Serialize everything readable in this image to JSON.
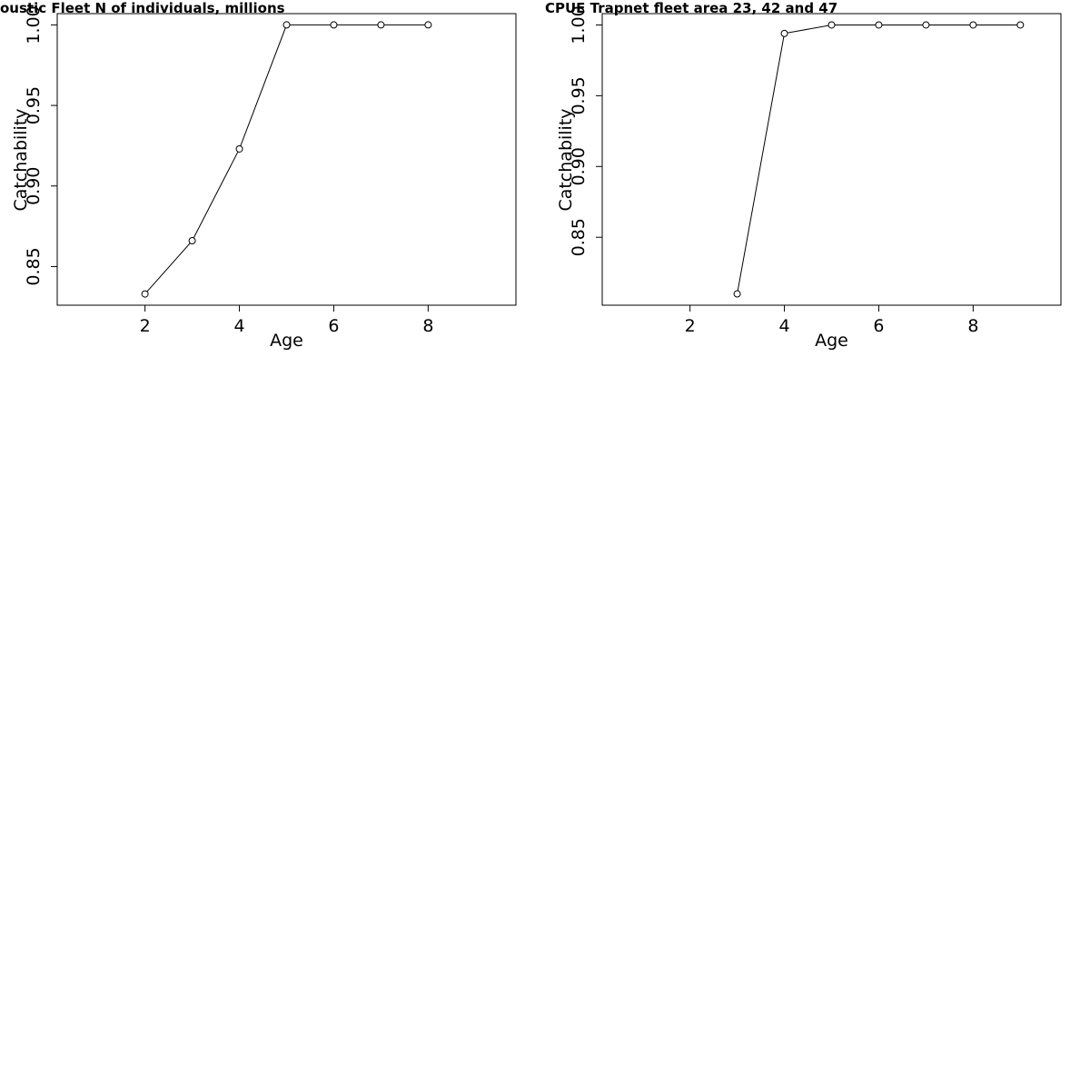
{
  "chart_data": [
    {
      "type": "line",
      "title": "oustic Fleet   N of individuals, millions",
      "x_label": "Age",
      "y_label": "Catchability",
      "x": [
        2,
        3,
        4,
        5,
        6,
        7,
        8
      ],
      "series": [
        {
          "color": "#000000",
          "values": [
            0.833,
            0.866,
            0.923,
            1,
            1,
            1,
            1
          ]
        }
      ],
      "xlim": [
        0.14,
        9.86
      ],
      "xticks": [
        2,
        4,
        6,
        8
      ],
      "ylim": [
        0.826,
        1.007
      ],
      "yticks": [
        0.85,
        {
          "value": 0.9,
          "label": "0.90"
        },
        0.95,
        {
          "value": 1,
          "label": "1.00"
        }
      ]
    },
    {
      "type": "line",
      "title": "CPUE Trapnet fleet area 23, 42 and 47",
      "x_label": "Age",
      "y_label": "Catchability",
      "x": [
        3,
        4,
        5,
        6,
        7,
        8,
        9
      ],
      "series": [
        {
          "color": "#000000",
          "values": [
            0.81,
            0.994,
            1,
            1,
            1,
            1,
            1
          ]
        }
      ],
      "xlim": [
        0.14,
        9.86
      ],
      "xticks": [
        2,
        4,
        6,
        8
      ],
      "ylim": [
        0.802,
        1.008
      ],
      "yticks": [
        0.85,
        {
          "value": 0.9,
          "label": "0.90"
        },
        0.95,
        {
          "value": 1,
          "label": "1.00"
        }
      ]
    }
  ]
}
